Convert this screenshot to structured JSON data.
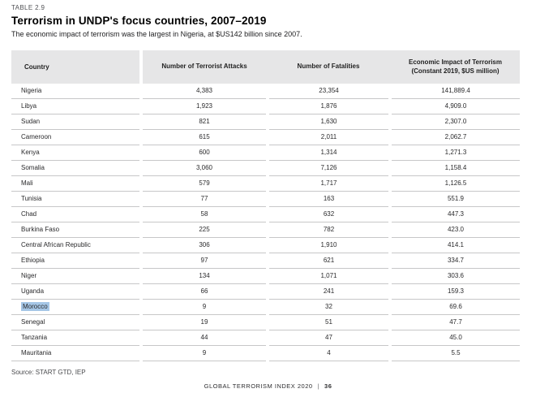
{
  "page": {
    "eyebrow": "TABLE 2.9",
    "title": "Terrorism in UNDP's focus countries, 2007–2019",
    "subtitle": "The economic impact of terrorism was the largest in Nigeria, at $US142 billion since 2007.",
    "source": "Source: START GTD, IEP",
    "footer": {
      "publication": "GLOBAL TERRORISM INDEX 2020",
      "separator": "|",
      "page_number": "36"
    }
  },
  "colors": {
    "header_bg": "#e6e6e7",
    "row_border": "#c7c7c8",
    "selection_highlight": "#a5c6e6",
    "eyebrow_text": "#515256",
    "body_text": "#232325"
  },
  "table": {
    "columns": [
      "Country",
      "Number of Terrorist Attacks",
      "Number of Fatalities",
      "Economic Impact of Terrorism\n(Constant 2019, $US million)"
    ],
    "rows": [
      {
        "country": "Nigeria",
        "attacks": "4,383",
        "fatalities": "23,354",
        "impact": "141,889.4",
        "highlighted": false
      },
      {
        "country": "Libya",
        "attacks": "1,923",
        "fatalities": "1,876",
        "impact": "4,909.0",
        "highlighted": false
      },
      {
        "country": "Sudan",
        "attacks": "821",
        "fatalities": "1,630",
        "impact": "2,307.0",
        "highlighted": false
      },
      {
        "country": "Cameroon",
        "attacks": "615",
        "fatalities": "2,011",
        "impact": "2,062.7",
        "highlighted": false
      },
      {
        "country": "Kenya",
        "attacks": "600",
        "fatalities": "1,314",
        "impact": "1,271.3",
        "highlighted": false
      },
      {
        "country": "Somalia",
        "attacks": "3,060",
        "fatalities": "7,126",
        "impact": "1,158.4",
        "highlighted": false
      },
      {
        "country": "Mali",
        "attacks": "579",
        "fatalities": "1,717",
        "impact": "1,126.5",
        "highlighted": false
      },
      {
        "country": "Tunisia",
        "attacks": "77",
        "fatalities": "163",
        "impact": "551.9",
        "highlighted": false
      },
      {
        "country": "Chad",
        "attacks": "58",
        "fatalities": "632",
        "impact": "447.3",
        "highlighted": false
      },
      {
        "country": "Burkina Faso",
        "attacks": "225",
        "fatalities": "782",
        "impact": "423.0",
        "highlighted": false
      },
      {
        "country": "Central African Republic",
        "attacks": "306",
        "fatalities": "1,910",
        "impact": "414.1",
        "highlighted": false
      },
      {
        "country": "Ethiopia",
        "attacks": "97",
        "fatalities": "621",
        "impact": "334.7",
        "highlighted": false
      },
      {
        "country": "Niger",
        "attacks": "134",
        "fatalities": "1,071",
        "impact": "303.6",
        "highlighted": false
      },
      {
        "country": "Uganda",
        "attacks": "66",
        "fatalities": "241",
        "impact": "159.3",
        "highlighted": false
      },
      {
        "country": "Morocco",
        "attacks": "9",
        "fatalities": "32",
        "impact": "69.6",
        "highlighted": true
      },
      {
        "country": "Senegal",
        "attacks": "19",
        "fatalities": "51",
        "impact": "47.7",
        "highlighted": false
      },
      {
        "country": "Tanzania",
        "attacks": "44",
        "fatalities": "47",
        "impact": "45.0",
        "highlighted": false
      },
      {
        "country": "Mauritania",
        "attacks": "9",
        "fatalities": "4",
        "impact": "5.5",
        "highlighted": false
      }
    ]
  }
}
